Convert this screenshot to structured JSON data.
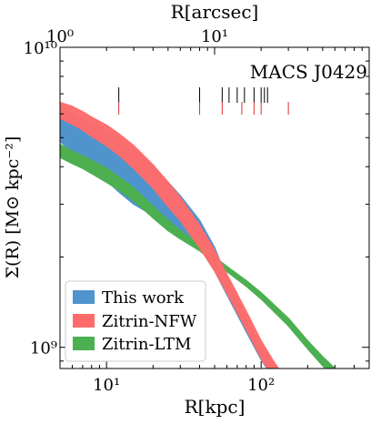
{
  "chart_data": {
    "type": "area",
    "title": "MACS J0429",
    "xlabel": "R[kpc]",
    "ylabel": "Σ(R) [M⊙ kpc⁻²]",
    "x2label": "R[arcsec]",
    "xscale": "log",
    "yscale": "log",
    "xlim": [
      5,
      500
    ],
    "ylim": [
      850000000,
      10000000000
    ],
    "x2lim": [
      1,
      100
    ],
    "xticks": [
      {
        "value": 10,
        "label": "10¹"
      },
      {
        "value": 100,
        "label": "10²"
      }
    ],
    "yticks": [
      {
        "value": 1000000000,
        "label": "10⁹"
      },
      {
        "value": 10000000000,
        "label": "10¹⁰"
      }
    ],
    "x2ticks": [
      {
        "value": 1,
        "label": "10⁰"
      },
      {
        "value": 10,
        "label": "10¹"
      }
    ],
    "legend_position": "lower-left",
    "series": [
      {
        "name": "This work",
        "kind": "band",
        "color": "#4f94cd",
        "x": [
          5,
          6,
          7,
          8,
          10,
          12,
          15,
          20,
          25,
          30,
          40,
          50,
          60,
          80,
          100,
          120,
          150
        ],
        "upper": [
          6400000000,
          6050000000,
          5800000000,
          5600000000,
          5300000000,
          5000000000,
          4600000000,
          4000000000,
          3550000000,
          3200000000,
          2650000000,
          2150000000,
          1700000000,
          1250000000,
          1000000000,
          880000000,
          760000000
        ],
        "lower": [
          4850000000,
          4500000000,
          4200000000,
          3950000000,
          3600000000,
          3300000000,
          3000000000,
          2750000000,
          2550000000,
          2400000000,
          2150000000,
          1800000000,
          1500000000,
          1130000000,
          910000000,
          790000000,
          680000000
        ]
      },
      {
        "name": "Zitrin-NFW",
        "kind": "band",
        "color": "#ff6b6b",
        "x": [
          5,
          6,
          7,
          8,
          10,
          12,
          15,
          20,
          25,
          30,
          40,
          50,
          60,
          80,
          100,
          120,
          150
        ],
        "upper": [
          6550000000,
          6350000000,
          6100000000,
          5850000000,
          5500000000,
          5150000000,
          4700000000,
          4050000000,
          3550000000,
          3150000000,
          2550000000,
          2100000000,
          1750000000,
          1320000000,
          1050000000,
          900000000,
          760000000
        ],
        "lower": [
          5800000000,
          5550000000,
          5300000000,
          5050000000,
          4700000000,
          4380000000,
          3950000000,
          3400000000,
          2950000000,
          2650000000,
          2150000000,
          1800000000,
          1520000000,
          1150000000,
          920000000,
          790000000,
          660000000
        ]
      },
      {
        "name": "Zitrin-LTM",
        "kind": "band",
        "color": "#4caf50",
        "x": [
          5,
          6,
          7,
          8,
          10,
          12,
          15,
          20,
          25,
          30,
          40,
          50,
          60,
          80,
          100,
          150,
          200,
          250,
          300
        ],
        "upper": [
          4750000000,
          4500000000,
          4350000000,
          4200000000,
          3950000000,
          3700000000,
          3400000000,
          2950000000,
          2650000000,
          2450000000,
          2200000000,
          2000000000,
          1860000000,
          1670000000,
          1520000000,
          1250000000,
          1050000000,
          930000000,
          850000000
        ],
        "lower": [
          4300000000,
          4100000000,
          3950000000,
          3800000000,
          3550000000,
          3350000000,
          3080000000,
          2700000000,
          2450000000,
          2300000000,
          2100000000,
          1920000000,
          1790000000,
          1600000000,
          1450000000,
          1180000000,
          990000000,
          870000000,
          790000000
        ]
      }
    ],
    "image_markers": {
      "black_x": [
        12,
        40,
        56,
        62,
        70,
        78,
        90,
        100,
        105,
        110
      ],
      "red_x": [
        12,
        40,
        56,
        75,
        90,
        100,
        150
      ]
    }
  }
}
